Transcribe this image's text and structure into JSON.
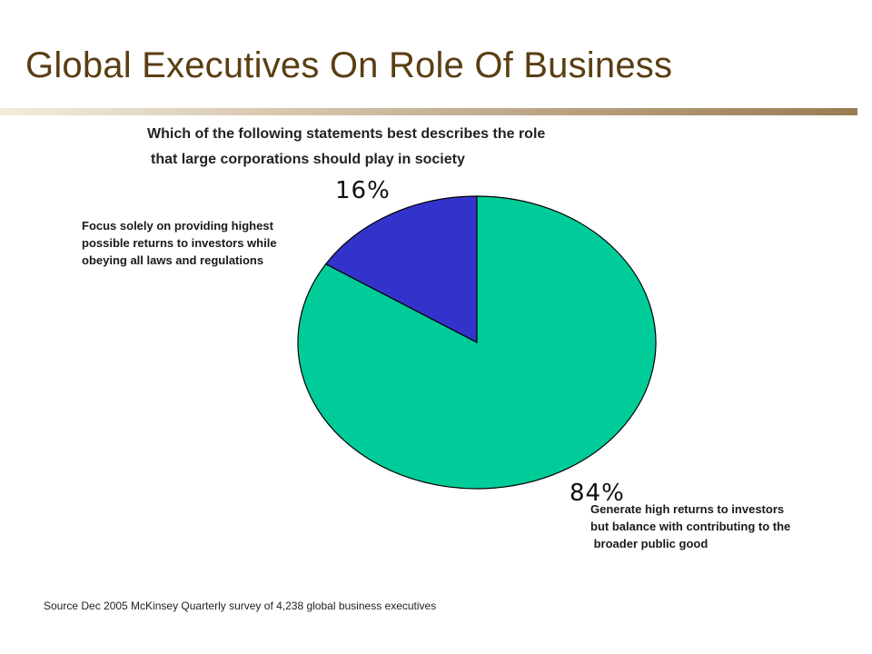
{
  "slide": {
    "title": "Global Executives On Role Of Business",
    "source": "Source Dec 2005 McKinsey Quarterly survey of 4,238 global business executives"
  },
  "colors": {
    "title": "#5a3e13",
    "rule_start": "#f3ecdc",
    "rule_end": "#9b7b52",
    "large_slice": "#00cc99",
    "small_slice": "#3333cc",
    "slice_outline": "#000000"
  },
  "chart_data": {
    "type": "pie",
    "title_lines": [
      "Which of the following statements best describes the role",
      "that large corporations should play in society"
    ],
    "slices": [
      {
        "label": "Focus solely on providing highest\npossible returns to investors while\nobeying all laws and regulations",
        "value": 16,
        "value_label": "16%",
        "color": "#3333cc"
      },
      {
        "label": "Generate high returns to investors\nbut balance with contributing to the\n broader public good",
        "value": 84,
        "value_label": "84%",
        "color": "#00cc99"
      }
    ],
    "start_angle": "12 o'clock, counterclockwise",
    "legend": "none"
  }
}
